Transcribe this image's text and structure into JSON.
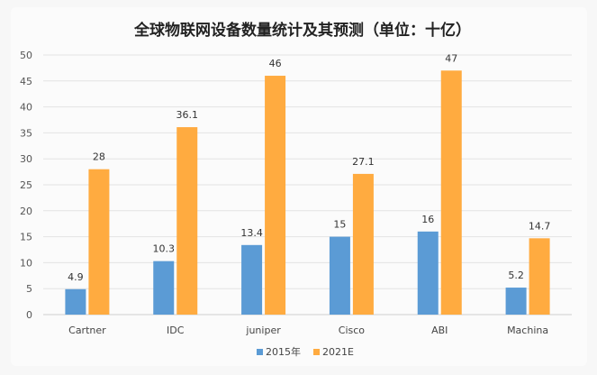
{
  "chart_data": {
    "type": "bar",
    "title": "全球物联网设备数量统计及其预测（单位：十亿）",
    "xlabel": "",
    "ylabel": "",
    "categories": [
      "Cartner",
      "IDC",
      "juniper",
      "Cisco",
      "ABI",
      "Machina"
    ],
    "series": [
      {
        "name": "2015年",
        "color": "#5b9bd5",
        "values": [
          4.9,
          10.3,
          13.4,
          15,
          16,
          5.2
        ]
      },
      {
        "name": "2021E",
        "color": "#ffab40",
        "values": [
          28,
          36.1,
          46,
          27.1,
          47,
          14.7
        ]
      }
    ],
    "ylim": [
      0,
      50
    ],
    "yticks": [
      0,
      5,
      10,
      15,
      20,
      25,
      30,
      35,
      40,
      45,
      50
    ],
    "grid": true,
    "legend": "bottom-center"
  }
}
